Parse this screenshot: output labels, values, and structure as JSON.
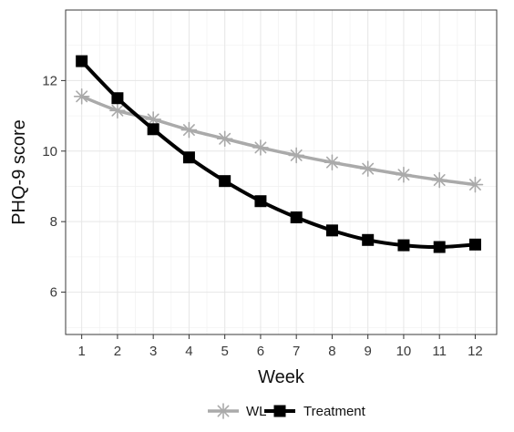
{
  "chart_data": {
    "type": "line",
    "xlabel": "Week",
    "ylabel": "PHQ-9 score",
    "x": [
      1,
      2,
      3,
      4,
      5,
      6,
      7,
      8,
      9,
      10,
      11,
      12
    ],
    "xlim": [
      0.55,
      12.6
    ],
    "ylim": [
      4.8,
      14.0
    ],
    "yticks": [
      6,
      8,
      10,
      12
    ],
    "xticks": [
      1,
      2,
      3,
      4,
      5,
      6,
      7,
      8,
      9,
      10,
      11,
      12
    ],
    "grid": true,
    "legend_position": "bottom",
    "series": [
      {
        "name": "WL",
        "marker": "asterisk",
        "color": "#aaaaaa",
        "values": [
          11.55,
          11.15,
          10.9,
          10.6,
          10.35,
          10.1,
          9.88,
          9.68,
          9.5,
          9.33,
          9.18,
          9.05
        ]
      },
      {
        "name": "Treatment",
        "marker": "square",
        "color": "#000000",
        "values": [
          12.55,
          11.5,
          10.62,
          9.82,
          9.15,
          8.58,
          8.12,
          7.75,
          7.48,
          7.33,
          7.28,
          7.35
        ]
      }
    ]
  }
}
